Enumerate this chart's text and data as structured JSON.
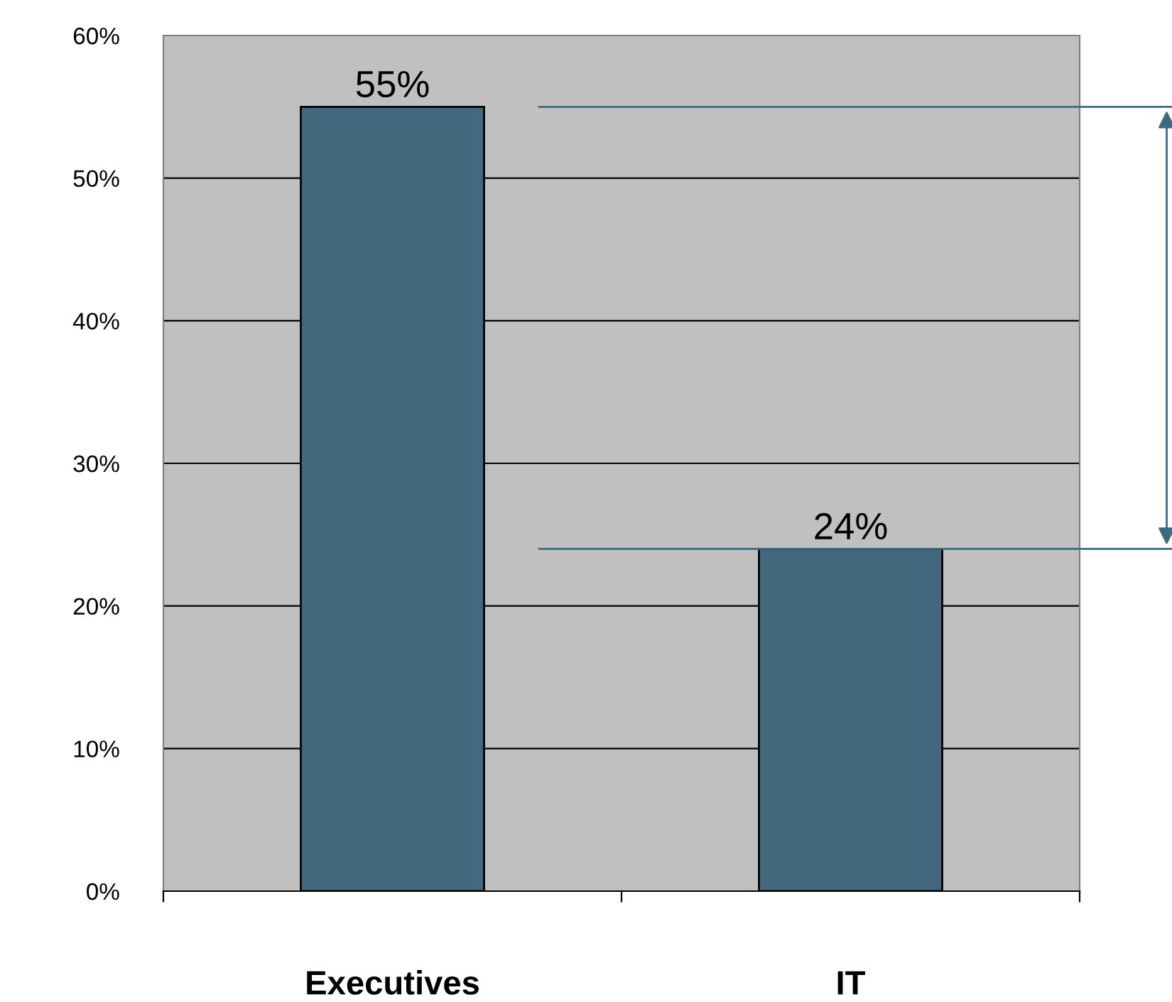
{
  "chart_data": {
    "type": "bar",
    "categories": [
      "Executives",
      "IT"
    ],
    "values": [
      55,
      24
    ],
    "color": "#44687d",
    "value_labels": [
      "55%",
      "24%"
    ],
    "ylim": [
      0,
      60
    ],
    "yticks": [
      {
        "value": 0,
        "label": "0%"
      },
      {
        "value": 10,
        "label": "10%"
      },
      {
        "value": 20,
        "label": "20%"
      },
      {
        "value": 30,
        "label": "30%"
      },
      {
        "value": 40,
        "label": "40%"
      },
      {
        "value": 50,
        "label": "50%"
      },
      {
        "value": 60,
        "label": "60%"
      }
    ],
    "ref_lines": [
      {
        "axis": "y",
        "value": 55,
        "color": "#3d6a80"
      },
      {
        "axis": "y",
        "value": 24,
        "color": "#3d6a80"
      }
    ],
    "grid": "y",
    "legend": false
  }
}
